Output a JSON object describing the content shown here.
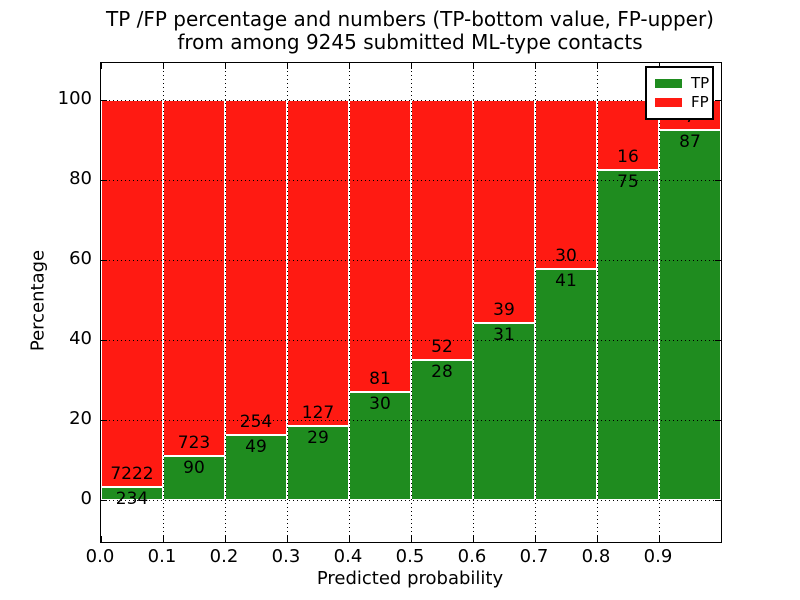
{
  "figure": {
    "title_line1": "TP /FP percentage and numbers (TP-bottom value, FP-upper)",
    "title_line2": "from among 9245 submitted ML-type contacts",
    "xlabel": "Predicted probability",
    "ylabel": "Percentage"
  },
  "legend": {
    "position": "upper-right",
    "items": [
      {
        "label": "TP",
        "color": "#1f8c1f"
      },
      {
        "label": "FP",
        "color": "#ff1a12"
      }
    ]
  },
  "chart_data": {
    "type": "bar",
    "stacked": true,
    "normalized": "each bin stacks to 100%",
    "title": "TP /FP percentage and numbers (TP-bottom value, FP-upper) from among 9245 submitted ML-type contacts",
    "xlabel": "Predicted probability",
    "ylabel": "Percentage",
    "total_contacts": 9245,
    "grid": true,
    "xlim": [
      0.0,
      1.0
    ],
    "ylim": [
      -10.5,
      109.25
    ],
    "xtick_labels": [
      "0.0",
      "0.1",
      "0.2",
      "0.3",
      "0.4",
      "0.5",
      "0.6",
      "0.7",
      "0.8",
      "0.9"
    ],
    "xtick_values": [
      0.0,
      0.1,
      0.2,
      0.3,
      0.4,
      0.5,
      0.6,
      0.7,
      0.8,
      0.9
    ],
    "ytick_labels": [
      "0",
      "20",
      "40",
      "60",
      "80",
      "100"
    ],
    "ytick_values": [
      0,
      20,
      40,
      60,
      80,
      100
    ],
    "series": [
      {
        "name": "TP",
        "color": "#1f8c1f",
        "position": "bottom"
      },
      {
        "name": "FP",
        "color": "#ff1a12",
        "position": "top"
      }
    ],
    "bins": [
      {
        "range": [
          0.0,
          0.1
        ],
        "tp": 234,
        "fp": 7222
      },
      {
        "range": [
          0.1,
          0.2
        ],
        "tp": 90,
        "fp": 723
      },
      {
        "range": [
          0.2,
          0.3
        ],
        "tp": 49,
        "fp": 254
      },
      {
        "range": [
          0.3,
          0.4
        ],
        "tp": 29,
        "fp": 127
      },
      {
        "range": [
          0.4,
          0.5
        ],
        "tp": 30,
        "fp": 81
      },
      {
        "range": [
          0.5,
          0.6
        ],
        "tp": 28,
        "fp": 52
      },
      {
        "range": [
          0.6,
          0.7
        ],
        "tp": 31,
        "fp": 39
      },
      {
        "range": [
          0.7,
          0.8
        ],
        "tp": 41,
        "fp": 30
      },
      {
        "range": [
          0.8,
          0.9
        ],
        "tp": 75,
        "fp": 16
      },
      {
        "range": [
          0.9,
          1.0
        ],
        "tp": 87,
        "fp": 7
      }
    ]
  }
}
